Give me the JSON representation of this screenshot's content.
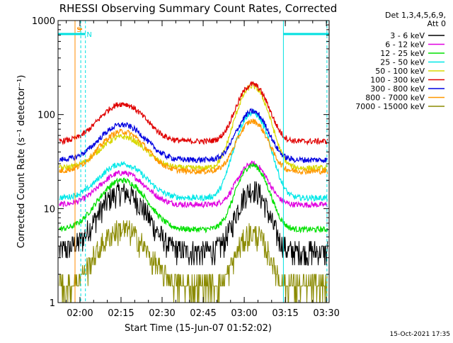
{
  "chart_data": {
    "type": "line",
    "title": "RHESSI Observing Summary Count Rates, Corrected",
    "xlabel": "Start Time (15-Jun-07 01:52:02)",
    "ylabel": "Corrected Count Rate (s⁻¹ detector⁻¹)",
    "x_unit": "minutes after 01:52:02",
    "xlim": [
      0,
      99
    ],
    "ylim": [
      1,
      1000
    ],
    "y_scale": "log",
    "x_ticks": [
      {
        "t": 8,
        "label": "02:00"
      },
      {
        "t": 23,
        "label": "02:15"
      },
      {
        "t": 38,
        "label": "02:30"
      },
      {
        "t": 53,
        "label": "02:45"
      },
      {
        "t": 68,
        "label": "03:00"
      },
      {
        "t": 83,
        "label": "03:15"
      },
      {
        "t": 98,
        "label": "03:30"
      }
    ],
    "y_ticks": [
      {
        "v": 1,
        "label": "1"
      },
      {
        "v": 10,
        "label": "10"
      },
      {
        "v": 100,
        "label": "100"
      },
      {
        "v": 1000,
        "label": "1000"
      }
    ],
    "legend_header": "Det 1,3,4,5,6,9,",
    "legend_header2": "Att 0",
    "legend_position": "right",
    "series": [
      {
        "name": "3 - 6 keV",
        "color": "#000000",
        "base": 3.5,
        "p1": 15,
        "p2": 16
      },
      {
        "name": "6 - 12 keV",
        "color": "#e000e0",
        "base": 11,
        "p1": 24,
        "p2": 30
      },
      {
        "name": "12 - 25 keV",
        "color": "#00e000",
        "base": 6,
        "p1": 20,
        "p2": 29
      },
      {
        "name": "25 - 50 keV",
        "color": "#00e8e8",
        "base": 13,
        "p1": 30,
        "p2": 105
      },
      {
        "name": "50 - 100 keV",
        "color": "#d8d800",
        "base": 27,
        "p1": 58,
        "p2": 200
      },
      {
        "name": "100 - 300 keV",
        "color": "#e00000",
        "base": 52,
        "p1": 130,
        "p2": 210
      },
      {
        "name": "300 - 800 keV",
        "color": "#0000e0",
        "base": 33,
        "p1": 78,
        "p2": 108
      },
      {
        "name": "800 - 7000 keV",
        "color": "#ff9800",
        "base": 25,
        "p1": 66,
        "p2": 85
      },
      {
        "name": "7000 - 15000 keV",
        "color": "#8a8a00",
        "base": 1.5,
        "p1": 6,
        "p2": 5.5
      }
    ],
    "markers": {
      "saa_label": "S",
      "night_label": "N",
      "saa_color": "#ff8c00",
      "night_color": "#00e0e0"
    }
  },
  "footer": {
    "timestamp": "15-Oct-2021 17:35"
  }
}
